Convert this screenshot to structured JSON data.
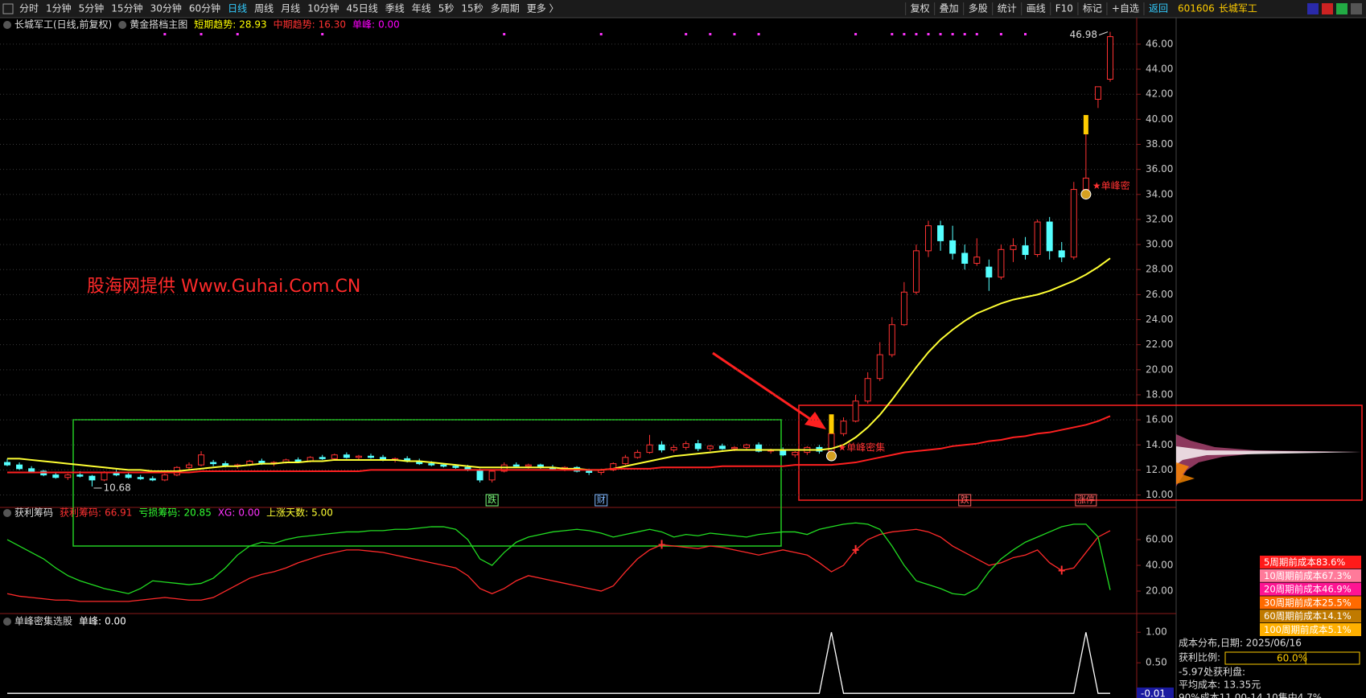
{
  "toolbar": {
    "left": [
      "分时",
      "1分钟",
      "5分钟",
      "15分钟",
      "30分钟",
      "60分钟",
      "日线",
      "周线",
      "月线",
      "10分钟",
      "45日线",
      "季线",
      "年线",
      "5秒",
      "15秒",
      "多周期",
      "更多 〉"
    ],
    "active_index": 6,
    "right": [
      "复权",
      "叠加",
      "多股",
      "统计",
      "画线",
      "F10",
      "标记",
      "+自选",
      "返回"
    ],
    "code": "601606",
    "name": "长城军工"
  },
  "main": {
    "title": "长城军工(日线,前复权)",
    "indicator": "黄金搭档主图",
    "stats": [
      {
        "label": "短期趋势:",
        "value": "28.93",
        "color": "#ffff00"
      },
      {
        "label": "中期趋势:",
        "value": "16.30",
        "color": "#ff3232"
      },
      {
        "label": "单峰:",
        "value": "0.00",
        "color": "#ff00ff"
      }
    ],
    "ylim": [
      9.2,
      47.6
    ],
    "yticks": [
      {
        "value": 10,
        "label": "10.00"
      },
      {
        "value": 12,
        "label": "12.00"
      },
      {
        "value": 14,
        "label": "14.00"
      },
      {
        "value": 16,
        "label": "16.00"
      },
      {
        "value": 18,
        "label": "18.00"
      },
      {
        "value": 20,
        "label": "20.00"
      },
      {
        "value": 22,
        "label": "22.00"
      },
      {
        "value": 24,
        "label": "24.00"
      },
      {
        "value": 26,
        "label": "26.00"
      },
      {
        "value": 28,
        "label": "28.00"
      },
      {
        "value": 30,
        "label": "30.00"
      },
      {
        "value": 32,
        "label": "32.00"
      },
      {
        "value": 34,
        "label": "34.00"
      },
      {
        "value": 36,
        "label": "36.00"
      },
      {
        "value": 38,
        "label": "38.00"
      },
      {
        "value": 40,
        "label": "40.00"
      },
      {
        "value": 42,
        "label": "42.00"
      },
      {
        "value": 44,
        "label": "44.00"
      },
      {
        "value": 46,
        "label": "46.00"
      }
    ],
    "candles": [
      [
        12.6,
        12.9,
        12.3,
        12.4
      ],
      [
        12.4,
        12.6,
        12.0,
        12.1
      ],
      [
        12.1,
        12.3,
        11.8,
        11.9
      ],
      [
        11.9,
        12.0,
        11.5,
        11.6
      ],
      [
        11.6,
        11.8,
        11.3,
        11.4
      ],
      [
        11.4,
        11.7,
        11.2,
        11.6
      ],
      [
        11.6,
        11.9,
        11.4,
        11.5
      ],
      [
        11.5,
        11.6,
        10.68,
        11.2
      ],
      [
        11.2,
        11.9,
        11.1,
        11.8
      ],
      [
        11.8,
        12.0,
        11.5,
        11.6
      ],
      [
        11.6,
        11.8,
        11.3,
        11.4
      ],
      [
        11.4,
        11.6,
        11.2,
        11.3
      ],
      [
        11.3,
        11.5,
        11.1,
        11.2
      ],
      [
        11.2,
        11.7,
        11.1,
        11.6
      ],
      [
        11.6,
        12.3,
        11.5,
        12.2
      ],
      [
        12.2,
        12.6,
        12.0,
        12.4
      ],
      [
        12.4,
        13.5,
        12.3,
        13.2
      ],
      [
        12.6,
        12.8,
        12.3,
        12.5
      ],
      [
        12.5,
        12.7,
        12.2,
        12.3
      ],
      [
        12.3,
        12.5,
        12.1,
        12.4
      ],
      [
        12.4,
        12.8,
        12.3,
        12.7
      ],
      [
        12.7,
        12.9,
        12.4,
        12.5
      ],
      [
        12.5,
        12.7,
        12.3,
        12.6
      ],
      [
        12.6,
        12.9,
        12.5,
        12.8
      ],
      [
        12.8,
        13.0,
        12.6,
        12.7
      ],
      [
        12.7,
        13.1,
        12.6,
        13.0
      ],
      [
        13.0,
        13.2,
        12.8,
        12.9
      ],
      [
        12.9,
        13.3,
        12.8,
        13.2
      ],
      [
        13.2,
        13.4,
        12.9,
        13.0
      ],
      [
        13.0,
        13.2,
        12.8,
        13.1
      ],
      [
        13.1,
        13.3,
        12.9,
        13.0
      ],
      [
        13.0,
        13.2,
        12.7,
        12.8
      ],
      [
        12.8,
        13.0,
        12.6,
        12.9
      ],
      [
        12.9,
        13.1,
        12.6,
        12.7
      ],
      [
        12.7,
        12.9,
        12.4,
        12.5
      ],
      [
        12.5,
        12.7,
        12.3,
        12.4
      ],
      [
        12.4,
        12.5,
        12.2,
        12.3
      ],
      [
        12.3,
        12.4,
        12.1,
        12.2
      ],
      [
        12.2,
        12.4,
        11.9,
        12.0
      ],
      [
        12.0,
        12.1,
        11.0,
        11.2
      ],
      [
        11.2,
        12.0,
        11.0,
        11.9
      ],
      [
        11.9,
        12.6,
        11.8,
        12.4
      ],
      [
        12.4,
        12.6,
        12.2,
        12.3
      ],
      [
        12.3,
        12.5,
        12.1,
        12.4
      ],
      [
        12.4,
        12.5,
        12.1,
        12.2
      ],
      [
        12.2,
        12.4,
        12.0,
        12.1
      ],
      [
        12.1,
        12.3,
        11.9,
        12.2
      ],
      [
        12.2,
        12.3,
        11.8,
        11.9
      ],
      [
        11.9,
        12.1,
        11.6,
        11.8
      ],
      [
        11.8,
        12.1,
        11.6,
        12.0
      ],
      [
        12.0,
        12.6,
        11.9,
        12.5
      ],
      [
        12.5,
        13.2,
        12.4,
        13.0
      ],
      [
        13.0,
        13.6,
        12.9,
        13.4
      ],
      [
        13.4,
        14.8,
        13.3,
        14.0
      ],
      [
        14.0,
        14.3,
        13.4,
        13.6
      ],
      [
        13.6,
        14.0,
        13.4,
        13.8
      ],
      [
        13.8,
        14.3,
        13.6,
        14.1
      ],
      [
        14.1,
        14.4,
        13.5,
        13.7
      ],
      [
        13.7,
        14.0,
        13.5,
        13.9
      ],
      [
        13.9,
        14.1,
        13.6,
        13.7
      ],
      [
        13.7,
        13.9,
        13.5,
        13.8
      ],
      [
        13.8,
        14.1,
        13.6,
        14.0
      ],
      [
        14.0,
        14.2,
        13.4,
        13.5
      ],
      [
        13.5,
        13.7,
        13.3,
        13.6
      ],
      [
        13.6,
        13.8,
        13.1,
        13.2
      ],
      [
        13.2,
        13.5,
        13.0,
        13.4
      ],
      [
        13.4,
        13.9,
        13.2,
        13.8
      ],
      [
        13.8,
        14.0,
        13.3,
        13.5
      ],
      [
        13.5,
        14.9,
        13.2,
        14.9
      ],
      [
        14.9,
        16.2,
        14.7,
        15.9
      ],
      [
        15.9,
        18.0,
        15.8,
        17.5
      ],
      [
        17.5,
        19.8,
        17.3,
        19.3
      ],
      [
        19.3,
        22.2,
        19.1,
        21.2
      ],
      [
        21.2,
        24.2,
        21.0,
        23.6
      ],
      [
        23.6,
        27.0,
        23.5,
        26.2
      ],
      [
        26.2,
        30.0,
        26.0,
        29.5
      ],
      [
        29.5,
        31.9,
        29.0,
        31.5
      ],
      [
        31.5,
        31.9,
        29.5,
        30.3
      ],
      [
        30.3,
        31.5,
        28.8,
        29.3
      ],
      [
        29.3,
        30.0,
        28.0,
        28.5
      ],
      [
        28.5,
        30.5,
        28.3,
        29.0
      ],
      [
        28.2,
        28.8,
        26.3,
        27.4
      ],
      [
        27.4,
        30.0,
        27.2,
        29.6
      ],
      [
        29.6,
        30.5,
        28.6,
        29.9
      ],
      [
        29.9,
        30.6,
        28.8,
        29.2
      ],
      [
        29.2,
        32.0,
        29.0,
        31.8
      ],
      [
        31.8,
        32.2,
        28.8,
        29.5
      ],
      [
        29.5,
        30.2,
        28.6,
        29.0
      ],
      [
        29.0,
        35.0,
        28.8,
        34.4
      ],
      [
        34.4,
        38.8,
        34.0,
        35.3
      ],
      [
        41.6,
        42.6,
        40.9,
        42.6
      ],
      [
        43.2,
        46.98,
        43.0,
        46.6
      ]
    ],
    "ma": [
      {
        "color": "#ffff33",
        "values": [
          12.9,
          12.9,
          12.8,
          12.7,
          12.6,
          12.5,
          12.4,
          12.3,
          12.2,
          12.1,
          12.0,
          12.0,
          11.9,
          11.9,
          11.9,
          12.0,
          12.1,
          12.2,
          12.3,
          12.3,
          12.4,
          12.5,
          12.5,
          12.6,
          12.6,
          12.7,
          12.7,
          12.8,
          12.8,
          12.8,
          12.8,
          12.8,
          12.8,
          12.7,
          12.7,
          12.6,
          12.5,
          12.4,
          12.3,
          12.2,
          12.2,
          12.2,
          12.2,
          12.2,
          12.2,
          12.2,
          12.1,
          12.1,
          12.0,
          12.0,
          12.1,
          12.3,
          12.5,
          12.7,
          12.9,
          13.1,
          13.2,
          13.3,
          13.4,
          13.5,
          13.6,
          13.6,
          13.6,
          13.6,
          13.6,
          13.6,
          13.6,
          13.6,
          13.7,
          14.0,
          14.6,
          15.4,
          16.4,
          17.6,
          18.9,
          20.2,
          21.4,
          22.4,
          23.2,
          23.9,
          24.5,
          24.9,
          25.3,
          25.6,
          25.8,
          26.0,
          26.3,
          26.7,
          27.1,
          27.6,
          28.2,
          28.9
        ]
      },
      {
        "color": "#ff2020",
        "values": [
          11.8,
          11.8,
          11.8,
          11.8,
          11.8,
          11.8,
          11.8,
          11.8,
          11.8,
          11.8,
          11.8,
          11.8,
          11.8,
          11.8,
          11.8,
          11.8,
          11.9,
          11.9,
          11.9,
          11.9,
          11.9,
          11.9,
          11.9,
          11.9,
          11.9,
          11.9,
          11.9,
          11.9,
          11.9,
          11.9,
          12.0,
          12.0,
          12.0,
          12.0,
          12.0,
          12.0,
          12.0,
          12.0,
          12.0,
          12.0,
          12.0,
          12.0,
          12.0,
          12.0,
          12.0,
          12.0,
          12.0,
          12.0,
          12.0,
          12.0,
          12.1,
          12.1,
          12.1,
          12.1,
          12.2,
          12.2,
          12.2,
          12.2,
          12.2,
          12.3,
          12.3,
          12.3,
          12.3,
          12.3,
          12.3,
          12.4,
          12.4,
          12.4,
          12.4,
          12.5,
          12.6,
          12.8,
          13.0,
          13.2,
          13.4,
          13.5,
          13.6,
          13.7,
          13.9,
          14.0,
          14.1,
          14.3,
          14.4,
          14.6,
          14.7,
          14.9,
          15.0,
          15.2,
          15.4,
          15.6,
          15.9,
          16.3
        ]
      }
    ],
    "dots": [
      13,
      16,
      19,
      26,
      41,
      49,
      56,
      58,
      60,
      62,
      70,
      73,
      74,
      75,
      76,
      77,
      78,
      79,
      80,
      82,
      84
    ],
    "signals": [
      {
        "index": 68,
        "label": "★单峰密集"
      },
      {
        "index": 89,
        "label": "★单峰密"
      }
    ],
    "tags": [
      {
        "index": 40,
        "label": "跌",
        "color": "#7cff7c"
      },
      {
        "index": 49,
        "label": "财",
        "color": "#7fb8ff"
      },
      {
        "index": 79,
        "label": "跌",
        "color": "#ff6060"
      },
      {
        "index": 89,
        "label": "涨停",
        "color": "#ff6060"
      }
    ],
    "watermark": "股海网提供 Www.Guhai.Com.CN"
  },
  "panel1": {
    "title": "获利筹码",
    "stats": [
      {
        "label": "获利筹码:",
        "value": "66.91",
        "color": "#ff3232"
      },
      {
        "label": "亏损筹码:",
        "value": "20.85",
        "color": "#32ff32"
      },
      {
        "label": "XG:",
        "value": "0.00",
        "color": "#ff33ff"
      },
      {
        "label": "上涨天数:",
        "value": "5.00",
        "color": "#ffff33"
      }
    ],
    "ylim": [
      4.4,
      79.4
    ],
    "yticks": [
      {
        "value": 20,
        "label": "20.00"
      },
      {
        "value": 40,
        "label": "40.00"
      },
      {
        "value": 60,
        "label": "60.00"
      }
    ],
    "series": [
      {
        "color": "#ff2a2a",
        "values": [
          18,
          16,
          15,
          14,
          13,
          13,
          12,
          12,
          12,
          12,
          12,
          13,
          14,
          15,
          14,
          13,
          13,
          15,
          20,
          25,
          30,
          33,
          35,
          38,
          42,
          45,
          48,
          50,
          52,
          52,
          51,
          50,
          48,
          46,
          44,
          42,
          40,
          38,
          32,
          22,
          18,
          22,
          28,
          32,
          30,
          28,
          26,
          24,
          22,
          20,
          24,
          35,
          45,
          52,
          56,
          55,
          54,
          53,
          55,
          54,
          52,
          50,
          48,
          50,
          52,
          50,
          48,
          42,
          35,
          40,
          52,
          60,
          64,
          66,
          67,
          68,
          66,
          62,
          55,
          50,
          45,
          40,
          42,
          46,
          48,
          52,
          42,
          36,
          38,
          50,
          62,
          66.91
        ]
      },
      {
        "color": "#22dd22",
        "values": [
          60,
          55,
          50,
          45,
          38,
          32,
          28,
          25,
          22,
          20,
          18,
          22,
          28,
          27,
          26,
          25,
          26,
          30,
          38,
          48,
          55,
          58,
          57,
          60,
          62,
          63,
          64,
          65,
          66,
          66,
          67,
          67,
          68,
          68,
          69,
          70,
          70,
          68,
          60,
          45,
          40,
          50,
          58,
          62,
          64,
          66,
          67,
          68,
          67,
          65,
          62,
          64,
          66,
          68,
          66,
          62,
          64,
          63,
          65,
          64,
          63,
          62,
          64,
          65,
          66,
          66,
          64,
          68,
          70,
          72,
          73,
          72,
          68,
          55,
          40,
          28,
          25,
          22,
          18,
          17,
          22,
          35,
          45,
          52,
          58,
          62,
          66,
          70,
          72,
          72,
          62,
          20.85
        ]
      }
    ],
    "markers": [
      54,
      70,
      87
    ]
  },
  "panel2": {
    "title": "单峰密集选股",
    "stats": [
      {
        "label": "单峰:",
        "value": "0.00",
        "color": "#ffffff"
      }
    ],
    "ylim": [
      -0.05,
      1.24
    ],
    "yticks": [
      {
        "value": 0.5,
        "label": "0.50"
      },
      {
        "value": 1,
        "label": "1.00"
      }
    ],
    "current": -0.01,
    "values": [
      0,
      0,
      0,
      0,
      0,
      0,
      0,
      0,
      0,
      0,
      0,
      0,
      0,
      0,
      0,
      0,
      0,
      0,
      0,
      0,
      0,
      0,
      0,
      0,
      0,
      0,
      0,
      0,
      0,
      0,
      0,
      0,
      0,
      0,
      0,
      0,
      0,
      0,
      0,
      0,
      0,
      0,
      0,
      0,
      0,
      0,
      0,
      0,
      0,
      0,
      0,
      0,
      0,
      0,
      0,
      0,
      0,
      0,
      0,
      0,
      0,
      0,
      0,
      0,
      0,
      0,
      0,
      0,
      1,
      0,
      0,
      0,
      0,
      0,
      0,
      0,
      0,
      0,
      0,
      0,
      0,
      0,
      0,
      0,
      0,
      0,
      0,
      0,
      0,
      1,
      0,
      0
    ]
  },
  "side": {
    "cost_legend": [
      {
        "label": "5周期前成本83.6%",
        "color": "#ff1a1a"
      },
      {
        "label": "10周期前成本67.3%",
        "color": "#ff7a9a"
      },
      {
        "label": "20周期前成本46.9%",
        "color": "#ff1493"
      },
      {
        "label": "30周期前成本25.5%",
        "color": "#ff6a00"
      },
      {
        "label": "60周期前成本14.1%",
        "color": "#c07a00"
      },
      {
        "label": "100周期前成本5.1%",
        "color": "#ffb000"
      }
    ],
    "date_line": "成本分布,日期:  2025/06/16",
    "profit_label": "获利比例:",
    "profit_ratio": 60,
    "profit_ratio_label": "60.0%",
    "info": [
      "-5.97处获利盘:",
      "平均成本:  13.35元",
      "90%成本11.00-14.10集中4.7%"
    ]
  }
}
